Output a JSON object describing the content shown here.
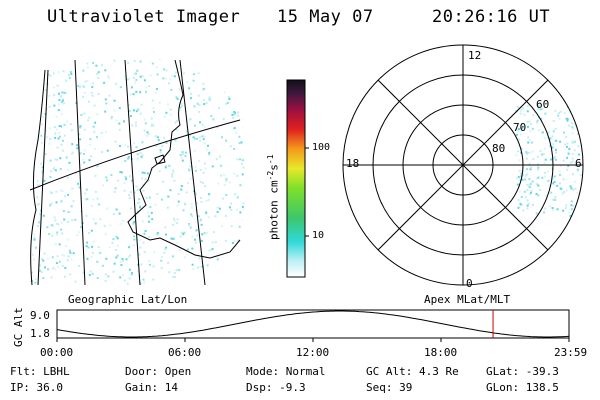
{
  "header": {
    "title": "Ultraviolet Imager",
    "date": "15 May 07",
    "time": "20:26:16 UT"
  },
  "geo_panel": {
    "label": "Geographic Lat/Lon"
  },
  "colorbar": {
    "label_main": "photon cm",
    "label_exp1": "-2",
    "label_s": "s",
    "label_exp2": "-1",
    "tick_high": "100",
    "tick_low": "10"
  },
  "polar_panel": {
    "label": "Apex MLat/MLT",
    "mlt_top": "12",
    "mlt_left": "18",
    "mlt_right": "6",
    "mlt_bottom": "0",
    "lat_60": "60",
    "lat_70": "70",
    "lat_80": "80"
  },
  "altitude_plot": {
    "axis_label": "GC Alt",
    "y_top": "9.0",
    "y_bottom": "1.8",
    "ylim": [
      1.8,
      9.0
    ],
    "x_ticks": [
      "00:00",
      "06:00",
      "12:00",
      "18:00",
      "23:59"
    ],
    "marker_hours": 20.44,
    "curve_color": "#000000",
    "marker_color": "#cc0000"
  },
  "status": {
    "flt": "Flt: LBHL",
    "door": "Door: Open",
    "mode": "Mode: Normal",
    "gc_alt": "GC Alt: 4.3 Re",
    "glat": "GLat: -39.3",
    "ip": "IP: 36.0",
    "gain": "Gain: 14",
    "dsp": "Dsp:   -9.3",
    "seq": "Seq: 39",
    "glon": "GLon: 138.5"
  }
}
